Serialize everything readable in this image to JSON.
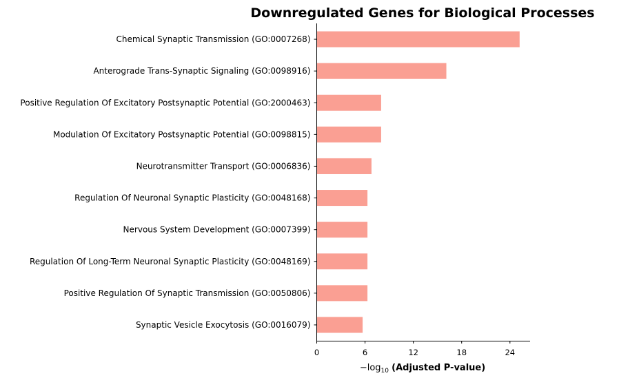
{
  "chart_data": {
    "type": "bar",
    "orientation": "horizontal",
    "title": "Downregulated Genes for Biological Processes",
    "xlabel_prefix": "−log",
    "xlabel_sub": "10",
    "xlabel_main": "(Adjusted P-value)",
    "ylabel": "",
    "categories": [
      "Chemical Synaptic Transmission (GO:0007268)",
      "Anterograde Trans-Synaptic Signaling (GO:0098916)",
      "Positive Regulation Of Excitatory Postsynaptic Potential (GO:2000463)",
      "Modulation Of Excitatory Postsynaptic Potential (GO:0098815)",
      "Neurotransmitter Transport (GO:0006836)",
      "Regulation Of Neuronal Synaptic Plasticity (GO:0048168)",
      "Nervous System Development (GO:0007399)",
      "Regulation Of Long-Term Neuronal Synaptic Plasticity (GO:0048169)",
      "Positive Regulation Of Synaptic Transmission (GO:0050806)",
      "Synaptic Vesicle Exocytosis (GO:0016079)"
    ],
    "values": [
      25.2,
      16.1,
      8.0,
      8.0,
      6.8,
      6.3,
      6.3,
      6.3,
      6.3,
      5.7
    ],
    "xlim": [
      0,
      26.5
    ],
    "xticks": [
      0,
      6,
      12,
      18,
      24
    ],
    "bar_color": "#fa9f93",
    "grid": false
  }
}
